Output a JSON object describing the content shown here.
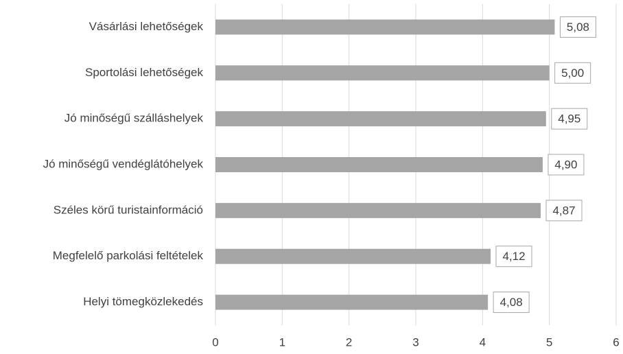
{
  "chart_data": {
    "type": "bar",
    "categories": [
      "Vásárlási lehetőségek",
      "Sportolási lehetőségek",
      "Jó minőségű szálláshelyek",
      "Jó minőségű vendéglátóhelyek",
      "Széles körű turistainformáció",
      "Megfelelő parkolási feltételek",
      "Helyi tömegközlekedés"
    ],
    "values": [
      5.08,
      5.0,
      4.95,
      4.9,
      4.87,
      4.12,
      4.08
    ],
    "value_labels": [
      "5,08",
      "5,00",
      "4,95",
      "4,90",
      "4,87",
      "4,12",
      "4,08"
    ],
    "color": "#a5a5a5",
    "xlim": [
      0,
      6
    ],
    "xticks": [
      0,
      1,
      2,
      3,
      4,
      5,
      6
    ],
    "grid": true
  }
}
